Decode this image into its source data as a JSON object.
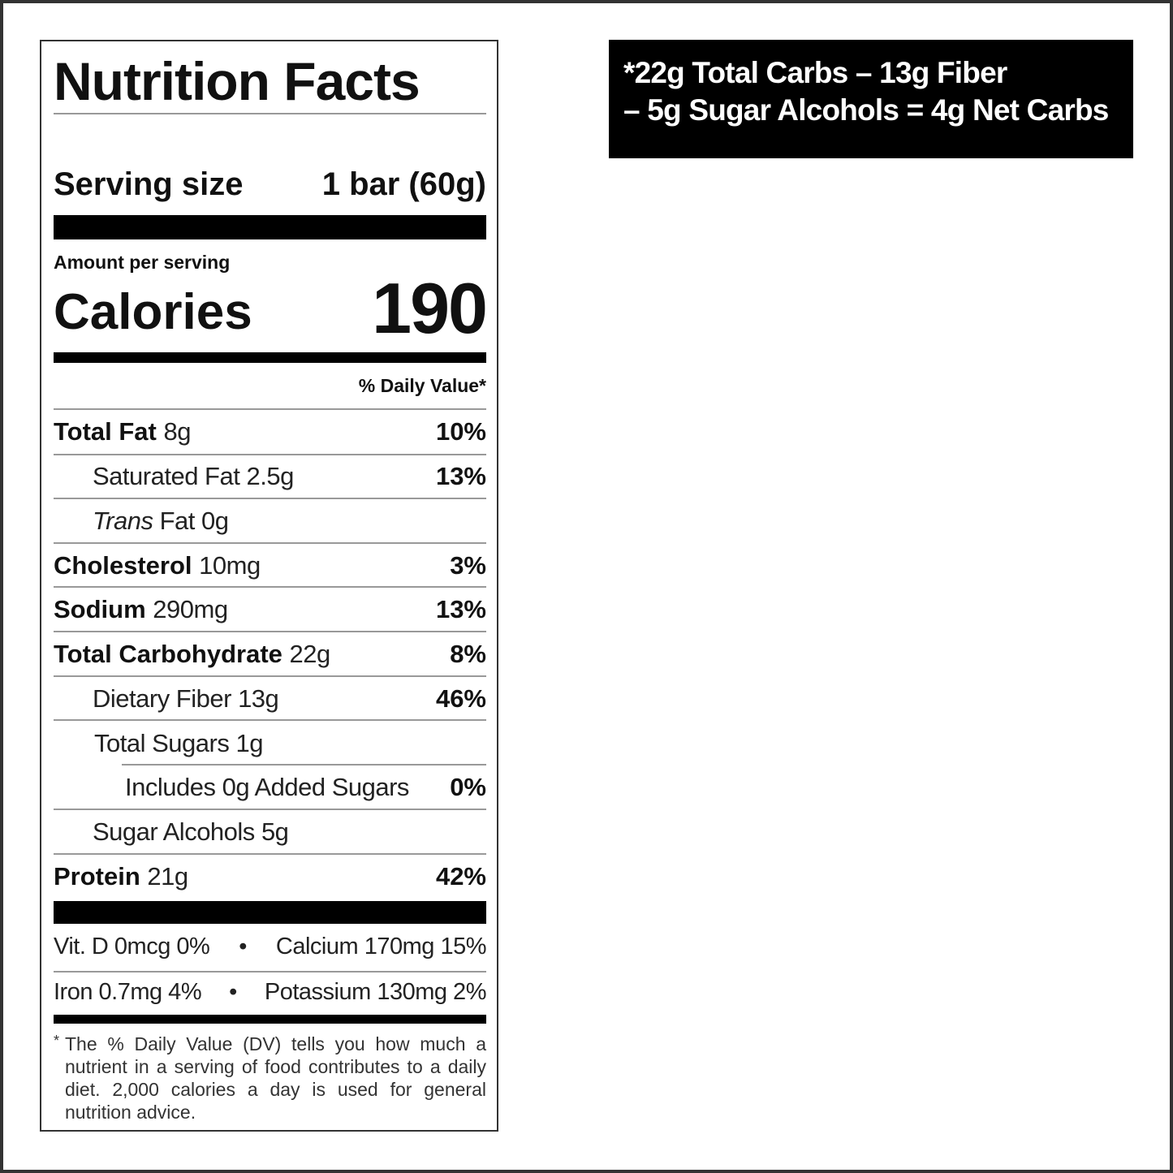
{
  "label": {
    "title": "Nutrition Facts",
    "serving_label": "Serving size",
    "serving_value": "1 bar (60g)",
    "amount_per_serving": "Amount per serving",
    "calories_label": "Calories",
    "calories_value": "190",
    "daily_value_header": "% Daily Value*",
    "rows": [
      {
        "name": "Total Fat",
        "amount": "8g",
        "dv": "10%"
      },
      {
        "name": "Saturated Fat",
        "amount": "2.5g",
        "dv": "13%"
      },
      {
        "name": "Trans",
        "name_suffix": "Fat",
        "amount": "0g",
        "dv": ""
      },
      {
        "name": "Cholesterol",
        "amount": "10mg",
        "dv": "3%"
      },
      {
        "name": "Sodium",
        "amount": "290mg",
        "dv": "13%"
      },
      {
        "name": "Total Carbohydrate",
        "amount": "22g",
        "dv": "8%"
      },
      {
        "name": "Dietary Fiber",
        "amount": "13g",
        "dv": "46%"
      },
      {
        "name": "Total Sugars",
        "amount": "1g",
        "dv": ""
      },
      {
        "name": "Includes 0g Added Sugars",
        "amount": "",
        "dv": "0%"
      },
      {
        "name": "Sugar Alcohols",
        "amount": "5g",
        "dv": ""
      },
      {
        "name": "Protein",
        "amount": "21g",
        "dv": "42%"
      }
    ],
    "vitamins": [
      {
        "left": "Vit. D 0mcg 0%",
        "right": "Calcium 170mg 15%"
      },
      {
        "left": "Iron 0.7mg 4%",
        "right": "Potassium 130mg 2%"
      }
    ],
    "bullet": "•",
    "footnote_star": "*",
    "footnote": "The % Daily Value (DV) tells you how much a nutrient in a serving of food contributes to a daily diet. 2,000 calories a day is used for general nutrition advice."
  },
  "net_carbs": {
    "line1": "*22g Total Carbs – 13g Fiber",
    "line2": "– 5g Sugar Alcohols = 4g Net Carbs"
  }
}
